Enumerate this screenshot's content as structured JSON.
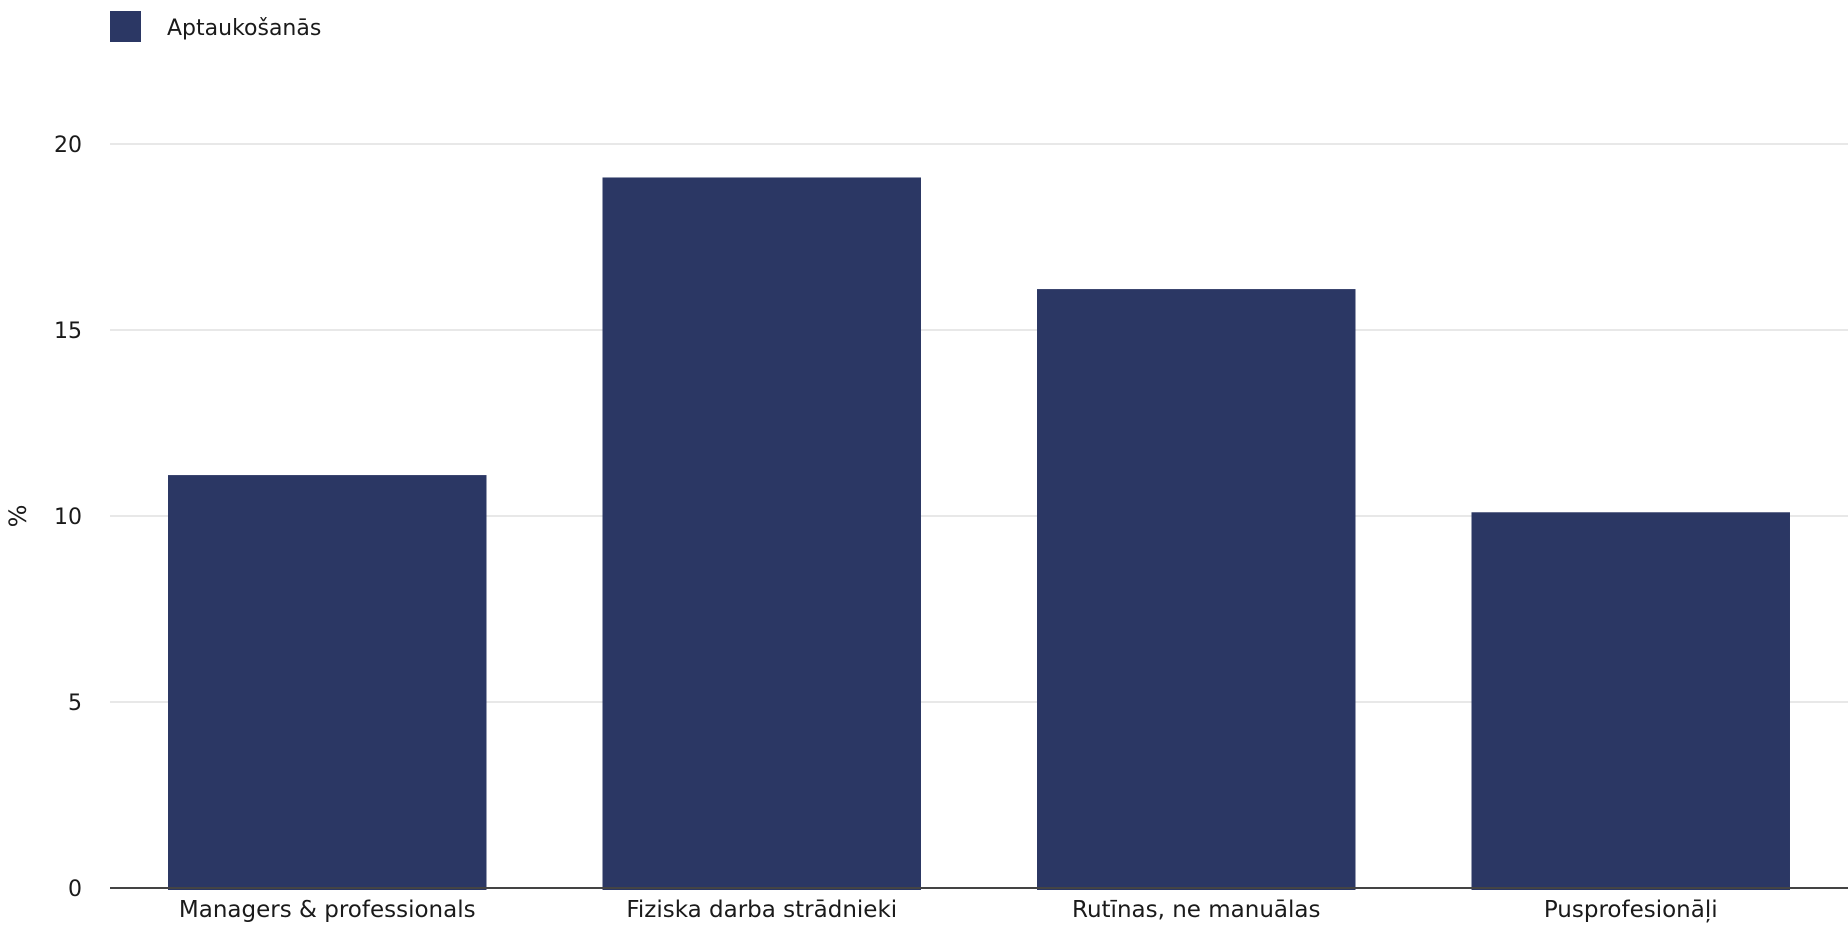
{
  "chart_data": {
    "type": "bar",
    "categories": [
      "Managers & professionals",
      "Fiziska darba strādnieki",
      "Rutīnas, ne manuālas",
      "Pusprofesionāļi"
    ],
    "series": [
      {
        "name": "Aptaukošanās",
        "values": [
          11.1,
          19.1,
          16.1,
          10.1
        ]
      }
    ],
    "title": "",
    "xlabel": "",
    "ylabel": "%",
    "ylim": [
      0,
      20
    ],
    "yticks": [
      0,
      5,
      10,
      15,
      20
    ],
    "grid": true,
    "legend_position": "top-left",
    "colors": {
      "bar": "#2b3764",
      "grid": "#e8e8e8",
      "axis": "#444444"
    }
  }
}
